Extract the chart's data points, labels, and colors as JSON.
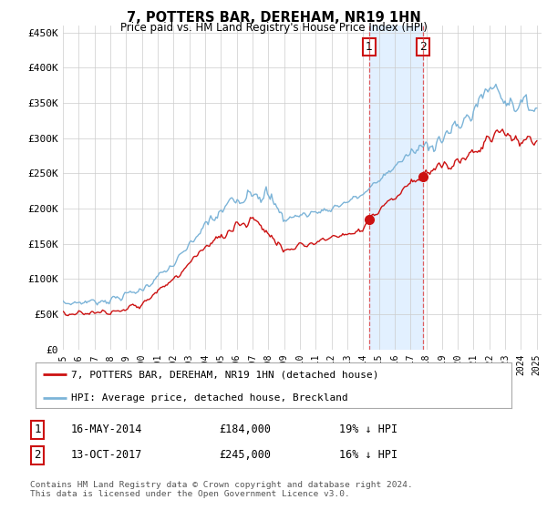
{
  "title": "7, POTTERS BAR, DEREHAM, NR19 1HN",
  "subtitle": "Price paid vs. HM Land Registry's House Price Index (HPI)",
  "ylabel_ticks": [
    "£0",
    "£50K",
    "£100K",
    "£150K",
    "£200K",
    "£250K",
    "£300K",
    "£350K",
    "£400K",
    "£450K"
  ],
  "ytick_values": [
    0,
    50000,
    100000,
    150000,
    200000,
    250000,
    300000,
    350000,
    400000,
    450000
  ],
  "hpi_color": "#7cb4d8",
  "price_color": "#cc1111",
  "shaded_color": "#ddeeff",
  "marker1_value": 184000,
  "marker2_value": 245000,
  "marker1_year": 2014.375,
  "marker2_year": 2017.792,
  "legend_label1": "7, POTTERS BAR, DEREHAM, NR19 1HN (detached house)",
  "legend_label2": "HPI: Average price, detached house, Breckland",
  "table_row1_num": "1",
  "table_row1_date": "16-MAY-2014",
  "table_row1_price": "£184,000",
  "table_row1_hpi": "19% ↓ HPI",
  "table_row2_num": "2",
  "table_row2_date": "13-OCT-2017",
  "table_row2_price": "£245,000",
  "table_row2_hpi": "16% ↓ HPI",
  "footer": "Contains HM Land Registry data © Crown copyright and database right 2024.\nThis data is licensed under the Open Government Licence v3.0."
}
